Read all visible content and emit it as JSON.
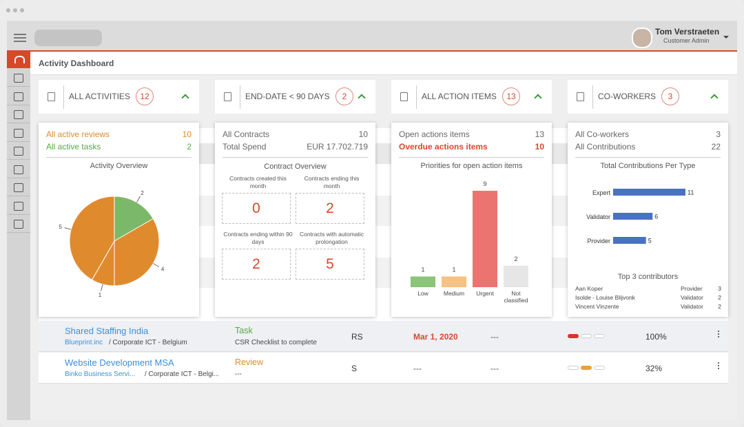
{
  "header": {
    "user_name": "Tom Verstraeten",
    "user_role": "Customer Admin"
  },
  "page_title": "Activity Dashboard",
  "tiles": [
    {
      "label": "ALL ACTIVITIES",
      "count": 12
    },
    {
      "label": "END-DATE < 90 DAYS",
      "count": 2
    },
    {
      "label": "ALL ACTION ITEMS",
      "count": 13
    },
    {
      "label": "CO-WORKERS",
      "count": 3
    }
  ],
  "activities_panel": {
    "rows": [
      {
        "label": "All active reviews",
        "value": 10
      },
      {
        "label": "All active tasks",
        "value": 2
      }
    ]
  },
  "contracts_panel": {
    "rows": [
      {
        "label": "All Contracts",
        "value": 10
      },
      {
        "label": "Total Spend",
        "value": "EUR 17.702.719"
      }
    ],
    "title": "Contract Overview",
    "boxes": [
      {
        "label": "Contracts created this month",
        "value": 0
      },
      {
        "label": "Contracts ending this month",
        "value": 2
      },
      {
        "label": "Contracts ending within 90 days",
        "value": 2
      },
      {
        "label": "Contracts with automatic prolongation",
        "value": 5
      }
    ]
  },
  "actions_panel": {
    "rows": [
      {
        "label": "Open actions items",
        "value": 13
      },
      {
        "label": "Overdue actions items",
        "value": 10
      }
    ]
  },
  "coworkers_panel": {
    "rows": [
      {
        "label": "All Co-workers",
        "value": 3
      },
      {
        "label": "All Contributions",
        "value": 22
      }
    ],
    "contributors_title": "Top 3 contributors",
    "contributors": [
      [
        "Aan Koper",
        "Provider",
        3
      ],
      [
        "Isolde - Louise Blijvonk",
        "Validator",
        2
      ],
      [
        "Vincent Vinzente",
        "Validator",
        2
      ]
    ]
  },
  "chart_data": [
    {
      "type": "pie",
      "title": "Activity Overview",
      "values": [
        2,
        4,
        1,
        5
      ],
      "colors": [
        "#7cb86a",
        "#e08a2e",
        "#e08a2e",
        "#e08a2e"
      ]
    },
    {
      "type": "bar",
      "title": "Priorities for open action items",
      "categories": [
        "Low",
        "Medium",
        "Urgent",
        "Not classified"
      ],
      "values": [
        1,
        1,
        9,
        2
      ],
      "colors": [
        "#8cc47a",
        "#f6c184",
        "#ec7470",
        "#e6e6e6"
      ]
    },
    {
      "type": "hbar",
      "title": "Total Contributions Per Type",
      "categories": [
        "Expert",
        "Validator",
        "Provider"
      ],
      "values": [
        11,
        6,
        5
      ],
      "color": "#4a72c4"
    }
  ],
  "table": {
    "rows": [
      {
        "title": "Shared Staffing India",
        "company": "Blueprint.inc",
        "department": "/ Corporate ICT - Belgium",
        "type": "Task",
        "subject": "CSR Checklist to complete",
        "initials": "RS",
        "date": "Mar 1, 2020",
        "next": "---",
        "progress": "100%"
      },
      {
        "title": "Website Development MSA",
        "company": "Binko Business Servi...",
        "department": "/ Corporate ICT - Belgi...",
        "type": "Review",
        "subject": "---",
        "initials": "S",
        "date": "---",
        "next": "---",
        "progress": "32%"
      }
    ]
  }
}
